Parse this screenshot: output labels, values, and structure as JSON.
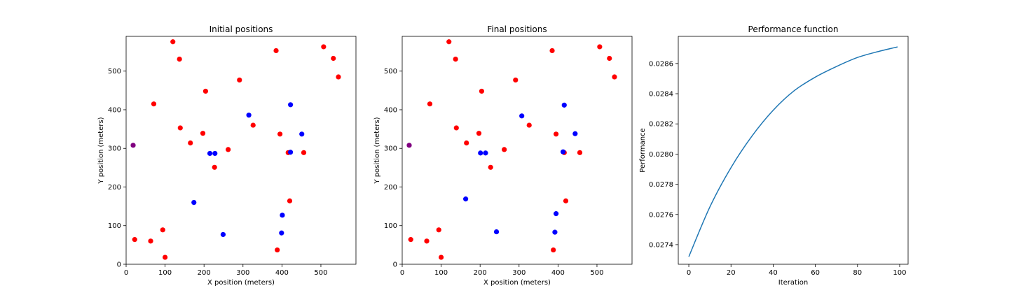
{
  "chart_data": [
    {
      "type": "scatter",
      "title": "Initial positions",
      "xlabel": "X position (meters)",
      "ylabel": "Y position (meters)",
      "xlim": [
        0,
        590
      ],
      "ylim": [
        0,
        590
      ],
      "xticks": [
        0,
        100,
        200,
        300,
        400,
        500
      ],
      "yticks": [
        0,
        100,
        200,
        300,
        400,
        500
      ],
      "grid": false,
      "series": [
        {
          "color": "#ff0000",
          "points": [
            [
              120,
              576
            ],
            [
              137,
              531
            ],
            [
              507,
              563
            ],
            [
              532,
              533
            ],
            [
              545,
              485
            ],
            [
              385,
              553
            ],
            [
              291,
              477
            ],
            [
              204,
              448
            ],
            [
              71,
              415
            ],
            [
              139,
              353
            ],
            [
              326,
              360
            ],
            [
              197,
              339
            ],
            [
              165,
              314
            ],
            [
              395,
              337
            ],
            [
              262,
              297
            ],
            [
              416,
              289
            ],
            [
              456,
              289
            ],
            [
              227,
              251
            ],
            [
              420,
              164
            ],
            [
              94,
              89
            ],
            [
              22,
              64
            ],
            [
              63,
              60
            ],
            [
              100,
              18
            ],
            [
              388,
              37
            ]
          ]
        },
        {
          "color": "#0000ff",
          "points": [
            [
              315,
              386
            ],
            [
              422,
              413
            ],
            [
              451,
              337
            ],
            [
              215,
              287
            ],
            [
              228,
              287
            ],
            [
              422,
              290
            ],
            [
              174,
              160
            ],
            [
              401,
              127
            ],
            [
              399,
              81
            ],
            [
              249,
              77
            ]
          ]
        },
        {
          "color": "#800080",
          "points": [
            [
              18,
              308
            ]
          ]
        }
      ]
    },
    {
      "type": "scatter",
      "title": "Final positions",
      "xlabel": "X position (meters)",
      "ylabel": "Y position (meters)",
      "xlim": [
        0,
        590
      ],
      "ylim": [
        0,
        590
      ],
      "xticks": [
        0,
        100,
        200,
        300,
        400,
        500
      ],
      "yticks": [
        0,
        100,
        200,
        300,
        400,
        500
      ],
      "grid": false,
      "series": [
        {
          "color": "#ff0000",
          "points": [
            [
              120,
              576
            ],
            [
              137,
              531
            ],
            [
              507,
              563
            ],
            [
              532,
              533
            ],
            [
              545,
              485
            ],
            [
              385,
              553
            ],
            [
              291,
              477
            ],
            [
              204,
              448
            ],
            [
              71,
              415
            ],
            [
              139,
              353
            ],
            [
              326,
              360
            ],
            [
              197,
              339
            ],
            [
              165,
              314
            ],
            [
              395,
              337
            ],
            [
              262,
              297
            ],
            [
              416,
              289
            ],
            [
              456,
              289
            ],
            [
              227,
              251
            ],
            [
              420,
              164
            ],
            [
              94,
              89
            ],
            [
              22,
              64
            ],
            [
              63,
              60
            ],
            [
              100,
              18
            ],
            [
              388,
              37
            ]
          ]
        },
        {
          "color": "#0000ff",
          "points": [
            [
              307,
              384
            ],
            [
              416,
              412
            ],
            [
              444,
              338
            ],
            [
              201,
              288
            ],
            [
              214,
              288
            ],
            [
              413,
              291
            ],
            [
              163,
              169
            ],
            [
              395,
              131
            ],
            [
              392,
              83
            ],
            [
              242,
              84
            ]
          ]
        },
        {
          "color": "#800080",
          "points": [
            [
              18,
              308
            ]
          ]
        }
      ]
    },
    {
      "type": "line",
      "title": "Performance function",
      "xlabel": "Iteration",
      "ylabel": "Performance",
      "xlim": [
        -5,
        104
      ],
      "ylim": [
        0.02727,
        0.02878
      ],
      "xticks": [
        0,
        20,
        40,
        60,
        80,
        100
      ],
      "yticks": [
        0.0274,
        0.0276,
        0.0278,
        0.028,
        0.0282,
        0.0284,
        0.0286
      ],
      "ytick_labels": [
        "0.0274",
        "0.0276",
        "0.0278",
        "0.0280",
        "0.0282",
        "0.0284",
        "0.0286"
      ],
      "grid": false,
      "series": [
        {
          "color": "#1f77b4",
          "x": [
            0,
            10,
            20,
            30,
            40,
            50,
            60,
            70,
            80,
            90,
            99
          ],
          "y": [
            0.02732,
            0.02765,
            0.02791,
            0.02812,
            0.02829,
            0.02842,
            0.02851,
            0.02858,
            0.02864,
            0.02868,
            0.02871
          ]
        }
      ]
    }
  ]
}
